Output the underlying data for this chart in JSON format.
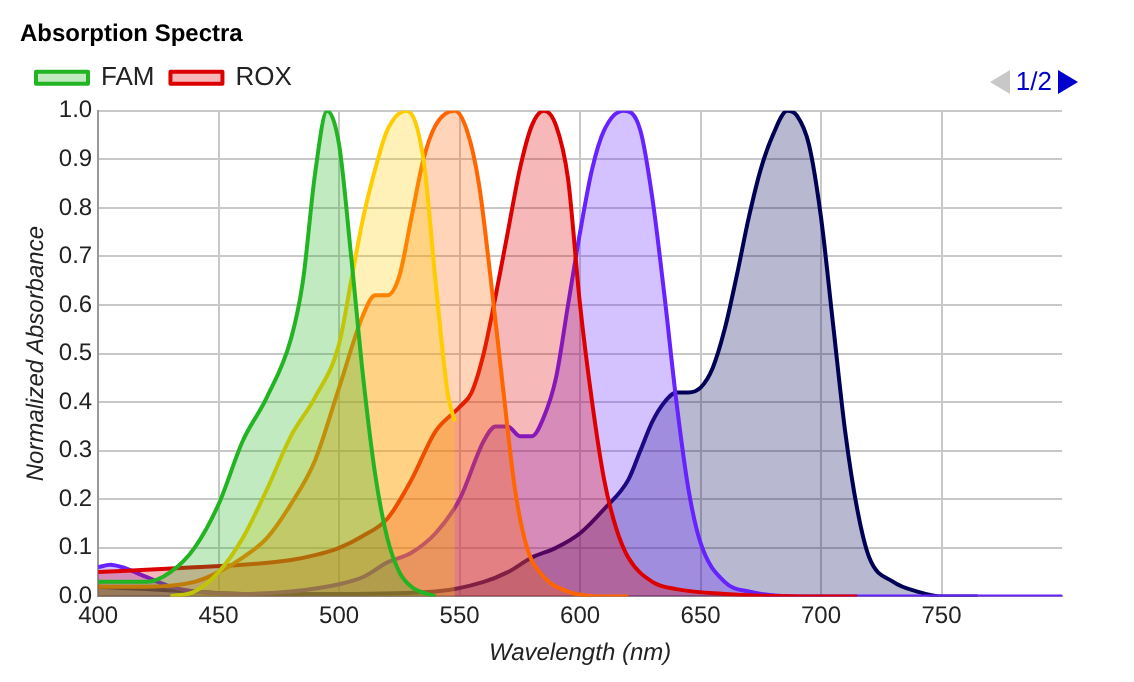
{
  "chart_data": {
    "type": "area",
    "title": "Absorption Spectra",
    "xlabel": "Wavelength (nm)",
    "ylabel": "Normalized Absorbance",
    "xlim": [
      400,
      800
    ],
    "xticks": [
      400,
      450,
      500,
      550,
      600,
      650,
      700,
      750
    ],
    "ylim": [
      0,
      1
    ],
    "yticks": [
      {
        "value": 0,
        "label": "0.0"
      },
      0.1,
      0.2,
      0.3,
      0.4,
      0.5,
      0.6,
      0.7,
      0.8,
      0.9,
      {
        "value": 1,
        "label": "1.0"
      }
    ],
    "grid": true,
    "legend": "top left",
    "annotations": [
      "1/2"
    ],
    "series": [
      {
        "name": "FAM",
        "color": "#22b422",
        "x": [
          400,
          420,
          430,
          440,
          450,
          460,
          470,
          480,
          485,
          490,
          495,
          500,
          505,
          510,
          515,
          520,
          525,
          530,
          540
        ],
        "values": [
          0.03,
          0.03,
          0.05,
          0.1,
          0.19,
          0.32,
          0.41,
          0.53,
          0.65,
          0.87,
          1.0,
          0.93,
          0.7,
          0.45,
          0.25,
          0.12,
          0.05,
          0.02,
          0.0
        ]
      },
      {
        "color": "#ffcc00",
        "x": [
          430,
          440,
          450,
          460,
          470,
          480,
          490,
          500,
          505,
          510,
          515,
          520,
          528,
          535,
          540,
          545,
          548
        ],
        "values": [
          0.0,
          0.01,
          0.05,
          0.12,
          0.22,
          0.33,
          0.41,
          0.52,
          0.65,
          0.78,
          0.88,
          0.96,
          1.0,
          0.9,
          0.65,
          0.42,
          0.36
        ]
      },
      {
        "color": "#ff6600",
        "x": [
          400,
          420,
          440,
          450,
          460,
          470,
          480,
          490,
          500,
          510,
          515,
          520,
          525,
          530,
          535,
          540,
          548,
          553,
          558,
          563,
          568,
          573,
          578,
          585,
          595,
          610,
          620
        ],
        "values": [
          0.02,
          0.02,
          0.03,
          0.05,
          0.08,
          0.12,
          0.19,
          0.28,
          0.43,
          0.58,
          0.62,
          0.62,
          0.66,
          0.78,
          0.9,
          0.97,
          1.0,
          0.96,
          0.85,
          0.65,
          0.43,
          0.22,
          0.1,
          0.04,
          0.01,
          0.0,
          0.0
        ]
      },
      {
        "name": "ROX",
        "color": "#dd0000",
        "x": [
          400,
          420,
          440,
          460,
          480,
          490,
          500,
          510,
          520,
          530,
          540,
          550,
          555,
          560,
          565,
          570,
          575,
          580,
          585,
          590,
          595,
          600,
          605,
          610,
          615,
          620,
          630,
          640,
          660,
          700,
          715
        ],
        "values": [
          0.05,
          0.055,
          0.06,
          0.065,
          0.075,
          0.085,
          0.1,
          0.125,
          0.16,
          0.24,
          0.34,
          0.39,
          0.42,
          0.5,
          0.62,
          0.75,
          0.88,
          0.97,
          1.0,
          0.97,
          0.86,
          0.6,
          0.4,
          0.24,
          0.14,
          0.08,
          0.03,
          0.015,
          0.005,
          0.0,
          0.0
        ]
      },
      {
        "color": "#6622ff",
        "x": [
          400,
          405,
          410,
          420,
          430,
          440,
          460,
          480,
          500,
          510,
          520,
          530,
          540,
          550,
          560,
          565,
          570,
          575,
          580,
          585,
          590,
          595,
          600,
          605,
          610,
          618,
          625,
          630,
          635,
          640,
          645,
          650,
          660,
          670,
          690,
          800
        ],
        "values": [
          0.06,
          0.065,
          0.06,
          0.04,
          0.02,
          0.01,
          0.005,
          0.01,
          0.025,
          0.04,
          0.07,
          0.09,
          0.13,
          0.2,
          0.32,
          0.35,
          0.35,
          0.33,
          0.33,
          0.37,
          0.45,
          0.6,
          0.75,
          0.88,
          0.96,
          1.0,
          0.96,
          0.82,
          0.62,
          0.4,
          0.22,
          0.11,
          0.03,
          0.01,
          0.0,
          0.0
        ]
      },
      {
        "color": "#000055",
        "x": [
          400,
          420,
          440,
          460,
          500,
          540,
          560,
          570,
          580,
          590,
          600,
          610,
          620,
          625,
          630,
          635,
          640,
          645,
          650,
          655,
          660,
          665,
          670,
          675,
          680,
          686,
          690,
          695,
          700,
          705,
          710,
          715,
          720,
          730,
          740,
          750,
          765
        ],
        "values": [
          0.02,
          0.015,
          0.01,
          0.005,
          0.005,
          0.01,
          0.03,
          0.05,
          0.08,
          0.1,
          0.13,
          0.18,
          0.24,
          0.3,
          0.36,
          0.4,
          0.42,
          0.42,
          0.43,
          0.47,
          0.55,
          0.66,
          0.78,
          0.88,
          0.95,
          1.0,
          0.99,
          0.93,
          0.78,
          0.56,
          0.34,
          0.18,
          0.08,
          0.03,
          0.01,
          0.0,
          0.0
        ]
      }
    ]
  }
}
